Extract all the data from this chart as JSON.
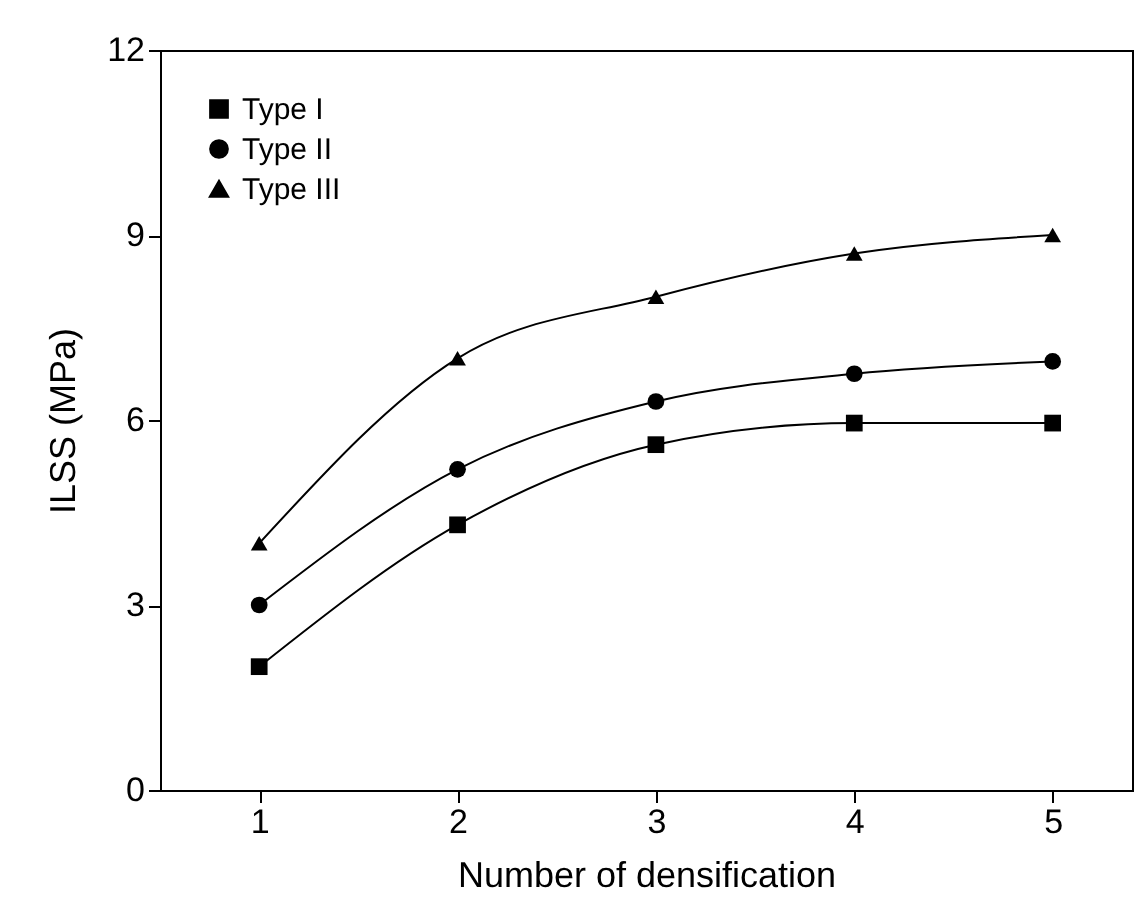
{
  "chart_data": {
    "type": "line",
    "xlabel": "Number of densification",
    "ylabel": "ILSS (MPa)",
    "x": [
      1,
      2,
      3,
      4,
      5
    ],
    "series": [
      {
        "name": "Type I",
        "color": "#000000",
        "marker": "square",
        "values": [
          2.0,
          4.3,
          5.6,
          5.95,
          5.95
        ]
      },
      {
        "name": "Type II",
        "color": "#000000",
        "marker": "circle",
        "values": [
          3.0,
          5.2,
          6.3,
          6.75,
          6.95
        ]
      },
      {
        "name": "Type III",
        "color": "#000000",
        "marker": "triangle",
        "values": [
          4.0,
          7.0,
          8.0,
          8.7,
          9.0
        ]
      }
    ],
    "xlim": [
      0.5,
      5.4
    ],
    "ylim": [
      0,
      12
    ],
    "xticks": [
      1,
      2,
      3,
      4,
      5
    ],
    "yticks": [
      0,
      3,
      6,
      9,
      12
    ],
    "grid": false,
    "legend": "top left",
    "line_style": "solid"
  }
}
